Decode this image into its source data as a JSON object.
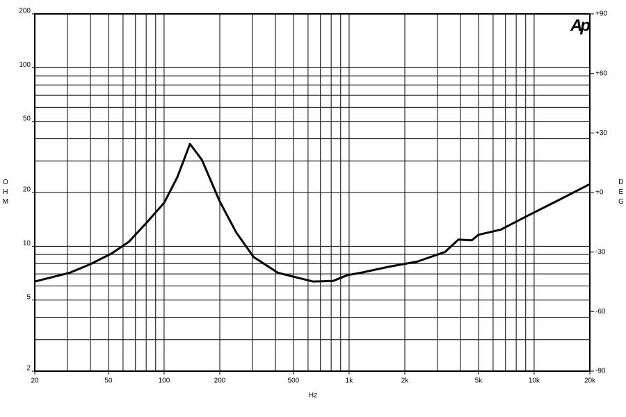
{
  "chart_data": {
    "type": "line",
    "logo": "Ap",
    "x_label": "Hz",
    "y_label": "OHM",
    "y2_label": "DEG",
    "x": [
      20,
      30.8,
      40,
      51.9,
      64.5,
      79.6,
      100,
      118,
      138,
      160,
      200,
      246,
      305,
      413,
      638,
      820,
      980,
      1150,
      1660,
      2330,
      3300,
      3900,
      4600,
      5000,
      6600,
      9300,
      13100,
      20000
    ],
    "values": [
      6.35,
      7.1,
      7.95,
      9.1,
      10.6,
      13.4,
      17.5,
      24.4,
      37.4,
      30.5,
      17.8,
      11.9,
      8.7,
      7.1,
      6.35,
      6.4,
      6.9,
      7.1,
      7.7,
      8.2,
      9.3,
      10.9,
      10.8,
      11.6,
      12.4,
      14.9,
      17.8,
      22.3
    ],
    "color": "#000000",
    "xlog": true,
    "ylog": true,
    "xlim": [
      20,
      20000
    ],
    "ylim": [
      2,
      200
    ],
    "y2lim": [
      -90,
      90
    ],
    "xticks": [
      20,
      50,
      100,
      200,
      500,
      {
        "value": 1000,
        "label": "1k"
      },
      {
        "value": 2000,
        "label": "2k"
      },
      {
        "value": 5000,
        "label": "5k"
      },
      {
        "value": 10000,
        "label": "10k"
      },
      {
        "value": 20000,
        "label": "20k"
      }
    ],
    "yticks": [
      2,
      5,
      10,
      20,
      50,
      100,
      200
    ],
    "y2ticks": [
      {
        "value": 90,
        "label": "+90"
      },
      {
        "value": 60,
        "label": "+60"
      },
      {
        "value": 30,
        "label": "+30"
      },
      {
        "value": 0,
        "label": "+0"
      },
      -30,
      -60,
      -90
    ],
    "xgrid": [
      20,
      30,
      40,
      50,
      60,
      70,
      80,
      90,
      100,
      200,
      300,
      400,
      500,
      600,
      700,
      800,
      900,
      1000,
      2000,
      3000,
      4000,
      5000,
      6000,
      7000,
      8000,
      9000,
      10000,
      20000
    ],
    "ygrid": [
      2,
      3,
      4,
      5,
      6,
      7,
      8,
      9,
      10,
      20,
      30,
      40,
      50,
      60,
      70,
      80,
      90,
      100,
      200
    ],
    "grid": true
  }
}
